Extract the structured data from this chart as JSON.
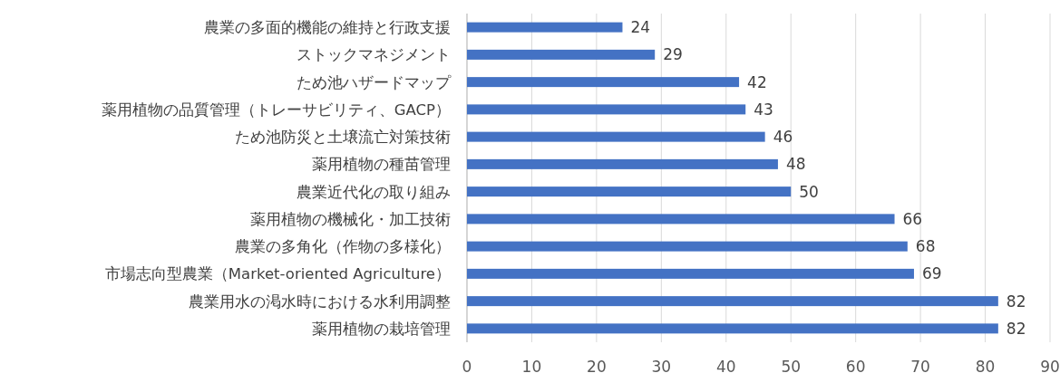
{
  "chart_data": {
    "type": "bar",
    "orientation": "horizontal",
    "categories": [
      "農業の多面的機能の維持と行政支援",
      "ストックマネジメント",
      "ため池ハザードマップ",
      "薬用植物の品質管理（トレーサビリティ、GACP）",
      "ため池防災と土壌流亡対策技術",
      "薬用植物の種苗管理",
      "農業近代化の取り組み",
      "薬用植物の機械化・加工技術",
      "農業の多角化（作物の多様化）",
      "市場志向型農業（Market-oriented Agriculture）",
      "農業用水の渇水時における水利用調整",
      "薬用植物の栽培管理"
    ],
    "values": [
      24,
      29,
      42,
      43,
      46,
      48,
      50,
      66,
      68,
      69,
      82,
      82
    ],
    "color": "#4472c4",
    "xlim": [
      0,
      90
    ],
    "xticks": [
      0,
      10,
      20,
      30,
      40,
      50,
      60,
      70,
      80,
      90
    ],
    "grid": "x",
    "data_labels": true
  }
}
